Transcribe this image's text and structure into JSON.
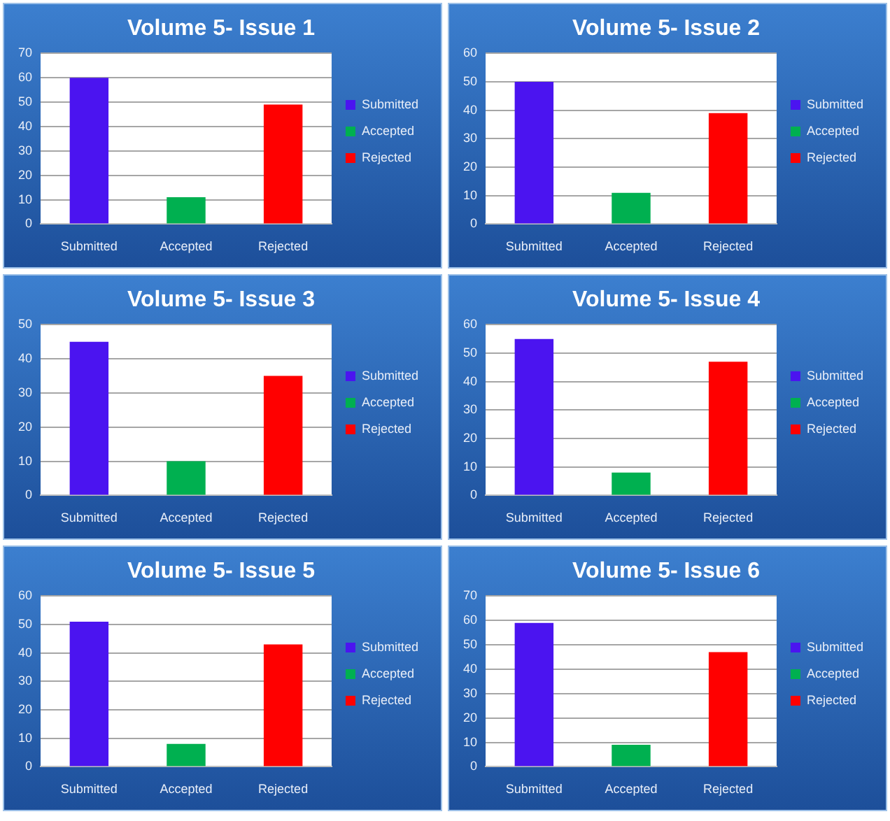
{
  "chart_data": [
    {
      "type": "bar",
      "title": "Volume 5- Issue 1",
      "categories": [
        "Submitted",
        "Accepted",
        "Rejected"
      ],
      "series": [
        {
          "name": "Submitted",
          "color": "#4b14f0",
          "values": [
            60,
            null,
            null
          ]
        },
        {
          "name": "Accepted",
          "color": "#00b050",
          "values": [
            null,
            11,
            null
          ]
        },
        {
          "name": "Rejected",
          "color": "#ff0000",
          "values": [
            null,
            null,
            49
          ]
        }
      ],
      "ylim": [
        0,
        70
      ],
      "yticks": [
        0,
        10,
        20,
        30,
        40,
        50,
        60,
        70
      ],
      "grid": "y",
      "legend": "right"
    },
    {
      "type": "bar",
      "title": "Volume 5- Issue 2",
      "categories": [
        "Submitted",
        "Accepted",
        "Rejected"
      ],
      "series": [
        {
          "name": "Submitted",
          "color": "#4b14f0",
          "values": [
            50,
            null,
            null
          ]
        },
        {
          "name": "Accepted",
          "color": "#00b050",
          "values": [
            null,
            11,
            null
          ]
        },
        {
          "name": "Rejected",
          "color": "#ff0000",
          "values": [
            null,
            null,
            39
          ]
        }
      ],
      "ylim": [
        0,
        60
      ],
      "yticks": [
        0,
        10,
        20,
        30,
        40,
        50,
        60
      ],
      "grid": "y",
      "legend": "right"
    },
    {
      "type": "bar",
      "title": "Volume 5- Issue 3",
      "categories": [
        "Submitted",
        "Accepted",
        "Rejected"
      ],
      "series": [
        {
          "name": "Submitted",
          "color": "#4b14f0",
          "values": [
            45,
            null,
            null
          ]
        },
        {
          "name": "Accepted",
          "color": "#00b050",
          "values": [
            null,
            10,
            null
          ]
        },
        {
          "name": "Rejected",
          "color": "#ff0000",
          "values": [
            null,
            null,
            35
          ]
        }
      ],
      "ylim": [
        0,
        50
      ],
      "yticks": [
        0,
        10,
        20,
        30,
        40,
        50
      ],
      "grid": "y",
      "legend": "right"
    },
    {
      "type": "bar",
      "title": "Volume 5- Issue 4",
      "categories": [
        "Submitted",
        "Accepted",
        "Rejected"
      ],
      "series": [
        {
          "name": "Submitted",
          "color": "#4b14f0",
          "values": [
            55,
            null,
            null
          ]
        },
        {
          "name": "Accepted",
          "color": "#00b050",
          "values": [
            null,
            8,
            null
          ]
        },
        {
          "name": "Rejected",
          "color": "#ff0000",
          "values": [
            null,
            null,
            47
          ]
        }
      ],
      "ylim": [
        0,
        60
      ],
      "yticks": [
        0,
        10,
        20,
        30,
        40,
        50,
        60
      ],
      "grid": "y",
      "legend": "right"
    },
    {
      "type": "bar",
      "title": "Volume 5- Issue 5",
      "categories": [
        "Submitted",
        "Accepted",
        "Rejected"
      ],
      "series": [
        {
          "name": "Submitted",
          "color": "#4b14f0",
          "values": [
            51,
            null,
            null
          ]
        },
        {
          "name": "Accepted",
          "color": "#00b050",
          "values": [
            null,
            8,
            null
          ]
        },
        {
          "name": "Rejected",
          "color": "#ff0000",
          "values": [
            null,
            null,
            43
          ]
        }
      ],
      "ylim": [
        0,
        60
      ],
      "yticks": [
        0,
        10,
        20,
        30,
        40,
        50,
        60
      ],
      "grid": "y",
      "legend": "right"
    },
    {
      "type": "bar",
      "title": "Volume 5- Issue 6",
      "categories": [
        "Submitted",
        "Accepted",
        "Rejected"
      ],
      "series": [
        {
          "name": "Submitted",
          "color": "#4b14f0",
          "values": [
            59,
            null,
            null
          ]
        },
        {
          "name": "Accepted",
          "color": "#00b050",
          "values": [
            null,
            9,
            null
          ]
        },
        {
          "name": "Rejected",
          "color": "#ff0000",
          "values": [
            null,
            null,
            47
          ]
        }
      ],
      "ylim": [
        0,
        70
      ],
      "yticks": [
        0,
        10,
        20,
        30,
        40,
        50,
        60,
        70
      ],
      "grid": "y",
      "legend": "right"
    }
  ]
}
